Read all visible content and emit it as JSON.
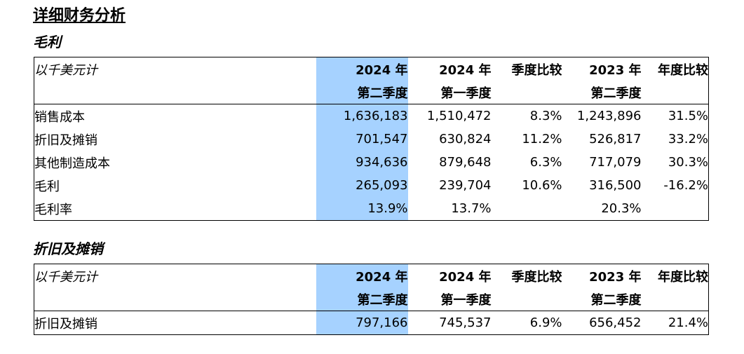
{
  "title": "详细财务分析",
  "units_label": "以千美元计",
  "columns": {
    "c1_line1": "2024 年",
    "c1_line2": "第二季度",
    "c2_line1": "2024 年",
    "c2_line2": "第一季度",
    "c3_line1": "季度比较",
    "c4_line1": "2023 年",
    "c4_line2": "第二季度",
    "c5_line1": "年度比较"
  },
  "highlight_color": "#a6d2ff",
  "gross_profit": {
    "title": "毛利",
    "rows": [
      {
        "label": "销售成本",
        "v1": "1,636,183",
        "v2": "1,510,472",
        "v3": "8.3%",
        "v4": "1,243,896",
        "v5": "31.5%"
      },
      {
        "label": "折旧及摊销",
        "v1": "701,547",
        "v2": "630,824",
        "v3": "11.2%",
        "v4": "526,817",
        "v5": "33.2%"
      },
      {
        "label": "其他制造成本",
        "v1": "934,636",
        "v2": "879,648",
        "v3": "6.3%",
        "v4": "717,079",
        "v5": "30.3%"
      },
      {
        "label": "毛利",
        "v1": "265,093",
        "v2": "239,704",
        "v3": "10.6%",
        "v4": "316,500",
        "v5": "-16.2%"
      },
      {
        "label": "毛利率",
        "v1": "13.9%",
        "v2": "13.7%",
        "v3": "",
        "v4": "20.3%",
        "v5": ""
      }
    ]
  },
  "depreciation": {
    "title": "折旧及摊销",
    "rows": [
      {
        "label": "折旧及摊销",
        "v1": "797,166",
        "v2": "745,537",
        "v3": "6.9%",
        "v4": "656,452",
        "v5": "21.4%"
      }
    ]
  }
}
